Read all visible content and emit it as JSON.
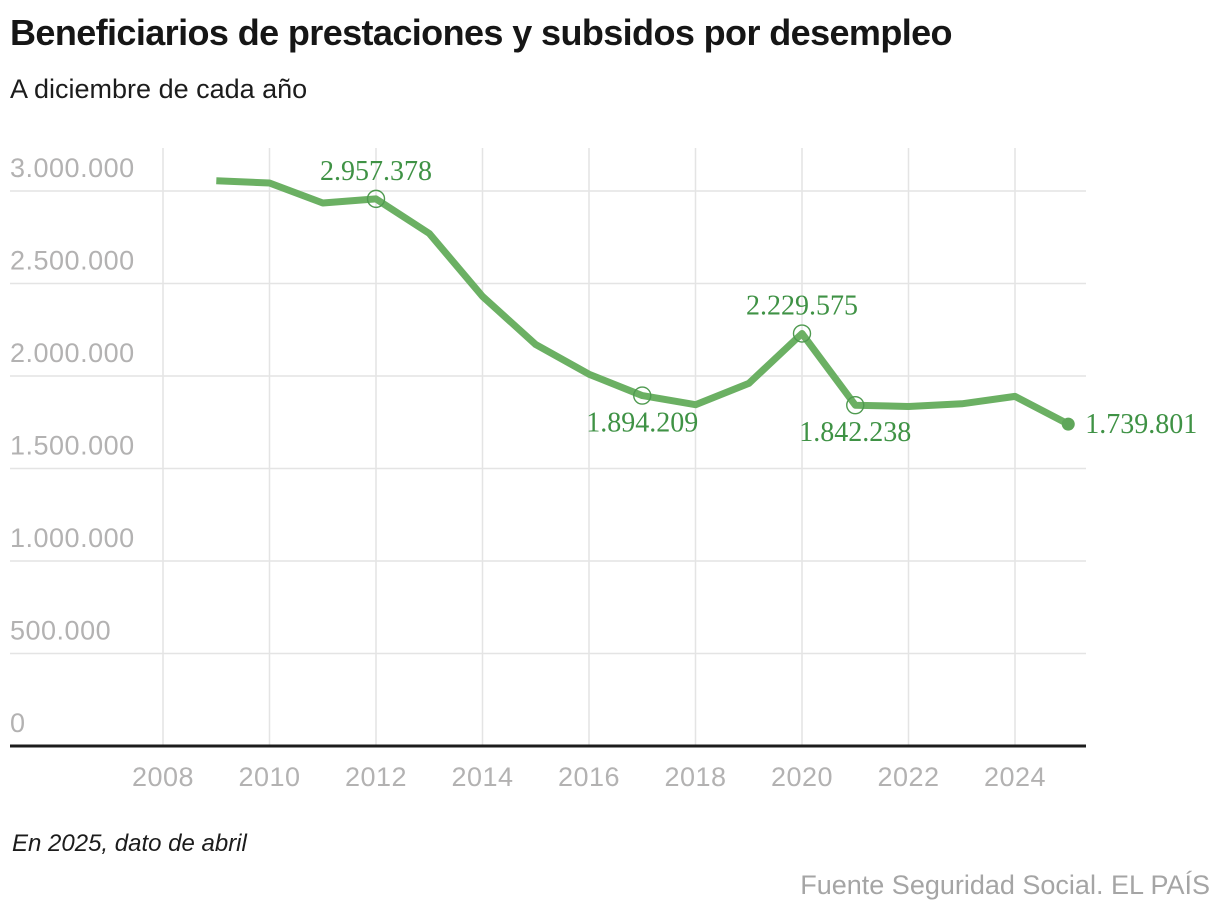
{
  "header": {
    "title": "Beneficiarios de prestaciones y subsidos por desempleo",
    "subtitle": "A diciembre de cada año"
  },
  "footer": {
    "note": "En 2025, dato de abril",
    "source": "Fuente Seguridad Social. EL PAÍS"
  },
  "colors": {
    "line": "#6bb063",
    "end_dot": "#5fa65a",
    "marker_ring": "#4f9a50",
    "data_label": "#3f9245",
    "grid": "#e4e4e4",
    "axis": "#1d1d1d",
    "tick_label": "#b3b2b2"
  },
  "chart_data": {
    "type": "line",
    "title": "Beneficiarios de prestaciones y subsidos por desempleo",
    "subtitle": "A diciembre de cada año",
    "xlabel": "",
    "ylabel": "",
    "x": [
      2009,
      2010,
      2011,
      2012,
      2013,
      2014,
      2015,
      2016,
      2017,
      2018,
      2019,
      2020,
      2021,
      2022,
      2023,
      2024,
      2025
    ],
    "values": [
      3055000,
      3043000,
      2935000,
      2957378,
      2770000,
      2430000,
      2170000,
      2010000,
      1894209,
      1845000,
      1960000,
      2229575,
      1842238,
      1835000,
      1850000,
      1890000,
      1739801
    ],
    "series": [
      {
        "name": "Beneficiarios de prestaciones y subsidios",
        "values": [
          3055000,
          3043000,
          2935000,
          2957378,
          2770000,
          2430000,
          2170000,
          2010000,
          1894209,
          1845000,
          1960000,
          2229575,
          1842238,
          1835000,
          1850000,
          1890000,
          1739801
        ]
      }
    ],
    "x_ticks": [
      {
        "value": 2008,
        "label": "2008"
      },
      {
        "value": 2010,
        "label": "2010"
      },
      {
        "value": 2012,
        "label": "2012"
      },
      {
        "value": 2014,
        "label": "2014"
      },
      {
        "value": 2016,
        "label": "2016"
      },
      {
        "value": 2018,
        "label": "2018"
      },
      {
        "value": 2020,
        "label": "2020"
      },
      {
        "value": 2022,
        "label": "2022"
      },
      {
        "value": 2024,
        "label": "2024"
      }
    ],
    "y_ticks": [
      {
        "value": 0,
        "label": "0"
      },
      {
        "value": 500000,
        "label": "500.000"
      },
      {
        "value": 1000000,
        "label": "1.000.000"
      },
      {
        "value": 1500000,
        "label": "1.500.000"
      },
      {
        "value": 2000000,
        "label": "2.000.000"
      },
      {
        "value": 2500000,
        "label": "2.500.000"
      },
      {
        "value": 3000000,
        "label": "3.000.000"
      }
    ],
    "annotations": [
      {
        "year": 2012,
        "value": 2957378,
        "label": "2.957.378",
        "position": "above",
        "marker": "open"
      },
      {
        "year": 2017,
        "value": 1894209,
        "label": "1.894.209",
        "position": "below",
        "marker": "open"
      },
      {
        "year": 2020,
        "value": 2229575,
        "label": "2.229.575",
        "position": "above",
        "marker": "open"
      },
      {
        "year": 2021,
        "value": 1842238,
        "label": "1.842.238",
        "position": "below",
        "marker": "open"
      },
      {
        "year": 2025,
        "value": 1739801,
        "label": "1.739.801",
        "position": "right",
        "marker": "filled"
      }
    ],
    "xlim": [
      2006.1,
      2026.4
    ],
    "ylim": [
      0,
      3230000
    ],
    "grid": true,
    "legend": "none"
  }
}
